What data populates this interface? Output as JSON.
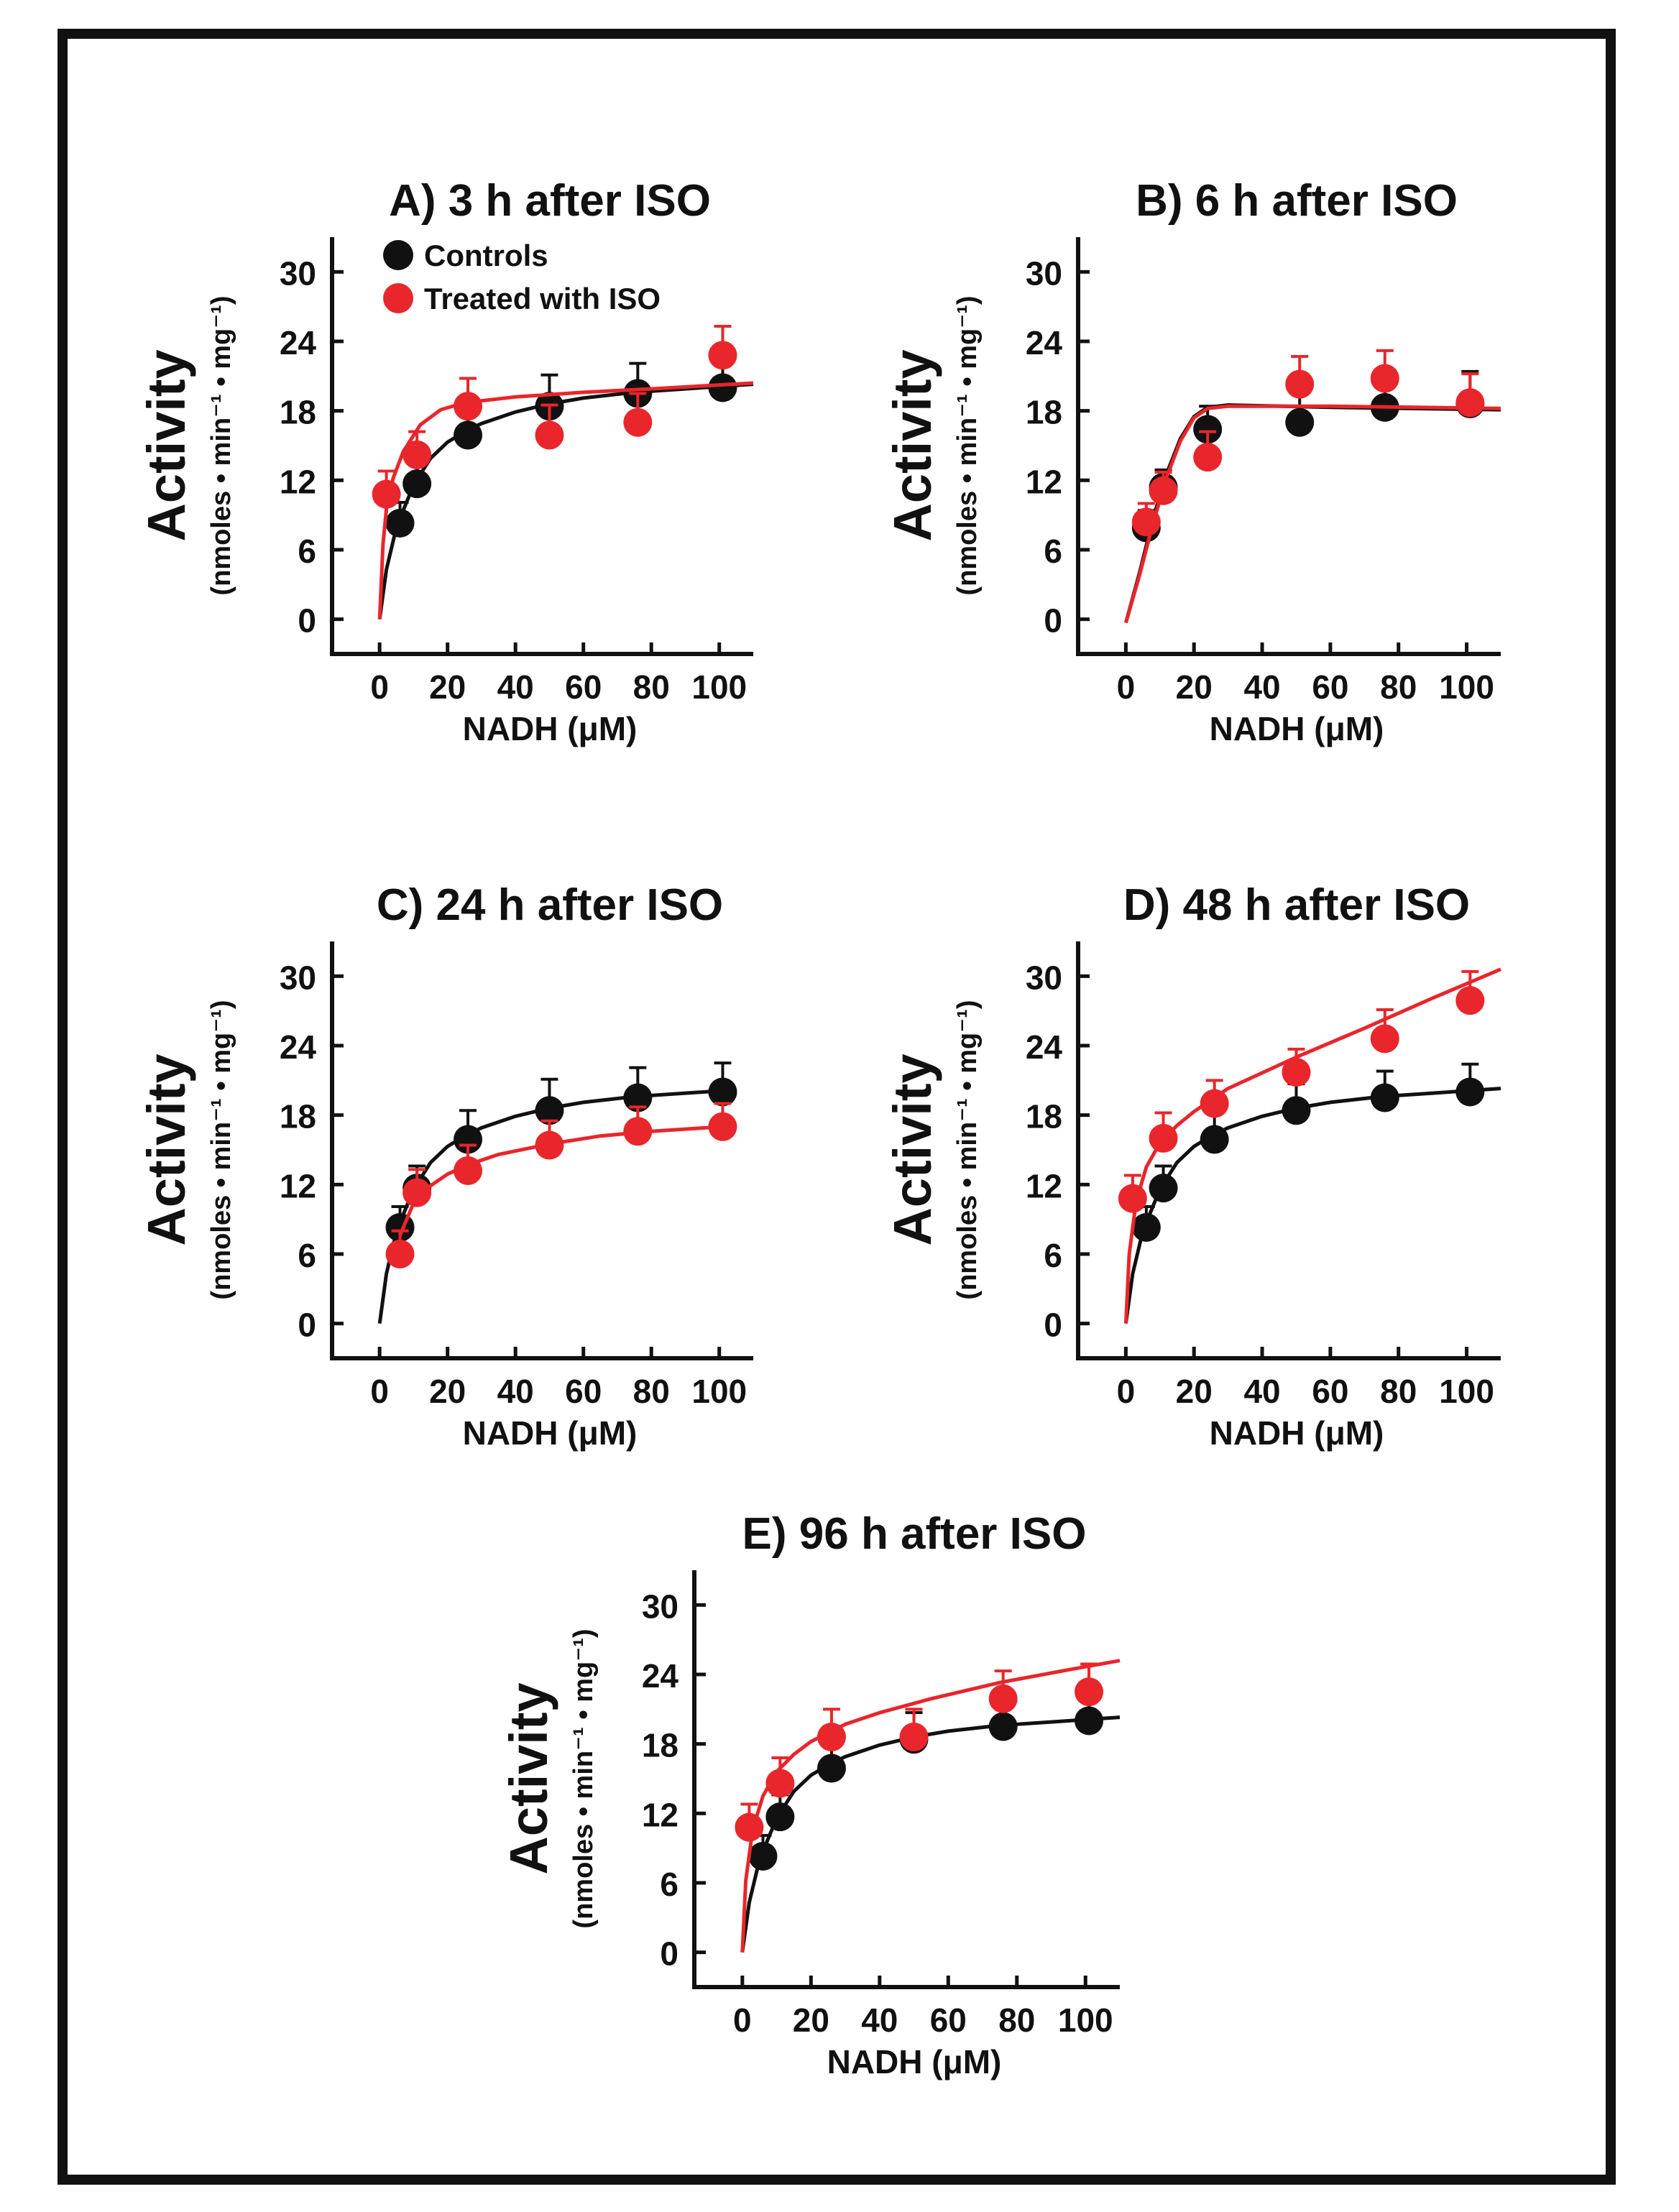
{
  "figure": {
    "legend": {
      "controls": "Controls",
      "treated": "Treated with ISO"
    }
  },
  "colors": {
    "controls": "#111111",
    "treated": "#e8262b",
    "frame": "#111111"
  },
  "chart_data": [
    {
      "id": "A",
      "type": "scatter",
      "title": "A) 3 h after ISO",
      "ylabel": "Activity",
      "ylabel_units": "(nmoles • min⁻¹ • mg⁻¹)",
      "xlabel": "NADH (μM)",
      "xlim": [
        -14,
        110
      ],
      "ylim": [
        -3,
        33
      ],
      "xticks": [
        0,
        20,
        40,
        60,
        80,
        100
      ],
      "yticks": [
        0,
        6,
        12,
        18,
        24,
        30
      ],
      "legend": "top-left",
      "series": [
        {
          "name": "Controls",
          "color": "#111111",
          "points": [
            {
              "x": 6,
              "y": 8.3,
              "err": 1.8
            },
            {
              "x": 11,
              "y": 11.7,
              "err": 1.9
            },
            {
              "x": 26,
              "y": 15.9,
              "err": 2.5
            },
            {
              "x": 50,
              "y": 18.4,
              "err": 2.7
            },
            {
              "x": 76,
              "y": 19.5,
              "err": 2.6
            },
            {
              "x": 101,
              "y": 20.0,
              "err": 2.5
            }
          ],
          "fit": [
            [
              0,
              0
            ],
            [
              2,
              4.3
            ],
            [
              5,
              8.0
            ],
            [
              10,
              11.6
            ],
            [
              15,
              13.9
            ],
            [
              20,
              15.3
            ],
            [
              25,
              16.2
            ],
            [
              30,
              16.9
            ],
            [
              40,
              17.9
            ],
            [
              50,
              18.6
            ],
            [
              60,
              19.1
            ],
            [
              75,
              19.6
            ],
            [
              90,
              19.9
            ],
            [
              110,
              20.3
            ]
          ]
        },
        {
          "name": "Treated with ISO",
          "color": "#e8262b",
          "points": [
            {
              "x": 2,
              "y": 10.8,
              "err": 2.0
            },
            {
              "x": 11,
              "y": 14.2,
              "err": 2.0
            },
            {
              "x": 26,
              "y": 18.4,
              "err": 2.4
            },
            {
              "x": 50,
              "y": 15.9,
              "err": 2.6
            },
            {
              "x": 76,
              "y": 17.0,
              "err": 2.5
            },
            {
              "x": 101,
              "y": 22.8,
              "err": 2.5
            }
          ],
          "fit": [
            [
              0,
              0
            ],
            [
              1,
              6.5
            ],
            [
              2,
              9.5
            ],
            [
              4,
              12.2
            ],
            [
              7,
              14.5
            ],
            [
              12,
              16.8
            ],
            [
              18,
              18.1
            ],
            [
              25,
              18.7
            ],
            [
              40,
              19.2
            ],
            [
              60,
              19.6
            ],
            [
              80,
              19.9
            ],
            [
              110,
              20.4
            ]
          ]
        }
      ]
    },
    {
      "id": "B",
      "type": "scatter",
      "title": "B) 6 h after ISO",
      "ylabel": "Activity",
      "ylabel_units": "(nmoles • min⁻¹ • mg⁻¹)",
      "xlabel": "NADH (μM)",
      "xlim": [
        -14,
        110
      ],
      "ylim": [
        -3,
        33
      ],
      "xticks": [
        0,
        20,
        40,
        60,
        80,
        100
      ],
      "yticks": [
        0,
        6,
        12,
        18,
        24,
        30
      ],
      "series": [
        {
          "name": "Controls",
          "color": "#111111",
          "points": [
            {
              "x": 6,
              "y": 7.9,
              "err": 1.5
            },
            {
              "x": 11,
              "y": 11.4,
              "err": 1.5
            },
            {
              "x": 24,
              "y": 16.4,
              "err": 2.0
            },
            {
              "x": 51,
              "y": 17.0,
              "err": 3.0
            },
            {
              "x": 76,
              "y": 18.3,
              "err": 3.0
            },
            {
              "x": 101,
              "y": 18.6,
              "err": 2.8
            }
          ],
          "fit": [
            [
              0,
              -0.3
            ],
            [
              4,
              4.0
            ],
            [
              8,
              8.7
            ],
            [
              12,
              12.6
            ],
            [
              16,
              15.6
            ],
            [
              20,
              17.5
            ],
            [
              24,
              18.3
            ],
            [
              30,
              18.5
            ],
            [
              60,
              18.3
            ],
            [
              110,
              18.1
            ]
          ]
        },
        {
          "name": "Treated with ISO",
          "color": "#e8262b",
          "points": [
            {
              "x": 6,
              "y": 8.4,
              "err": 1.6
            },
            {
              "x": 11,
              "y": 11.1,
              "err": 1.6
            },
            {
              "x": 24,
              "y": 14.0,
              "err": 2.2
            },
            {
              "x": 51,
              "y": 20.3,
              "err": 2.4
            },
            {
              "x": 76,
              "y": 20.8,
              "err": 2.4
            },
            {
              "x": 101,
              "y": 18.7,
              "err": 2.5
            }
          ],
          "fit": [
            [
              0,
              -0.3
            ],
            [
              4,
              3.8
            ],
            [
              8,
              8.3
            ],
            [
              12,
              12.3
            ],
            [
              16,
              15.4
            ],
            [
              20,
              17.4
            ],
            [
              24,
              18.2
            ],
            [
              30,
              18.4
            ],
            [
              60,
              18.4
            ],
            [
              110,
              18.2
            ]
          ]
        }
      ]
    },
    {
      "id": "C",
      "type": "scatter",
      "title": "C) 24 h after ISO",
      "ylabel": "Activity",
      "ylabel_units": "(nmoles • min⁻¹ • mg⁻¹)",
      "xlabel": "NADH (μM)",
      "xlim": [
        -14,
        110
      ],
      "ylim": [
        -3,
        33
      ],
      "xticks": [
        0,
        20,
        40,
        60,
        80,
        100
      ],
      "yticks": [
        0,
        6,
        12,
        18,
        24,
        30
      ],
      "series": [
        {
          "name": "Controls",
          "color": "#111111",
          "points": [
            {
              "x": 6,
              "y": 8.3,
              "err": 1.8
            },
            {
              "x": 11,
              "y": 11.7,
              "err": 1.9
            },
            {
              "x": 26,
              "y": 15.9,
              "err": 2.5
            },
            {
              "x": 50,
              "y": 18.4,
              "err": 2.7
            },
            {
              "x": 76,
              "y": 19.5,
              "err": 2.6
            },
            {
              "x": 101,
              "y": 20.0,
              "err": 2.5
            }
          ],
          "fit": [
            [
              0,
              0
            ],
            [
              2,
              4.3
            ],
            [
              5,
              8.0
            ],
            [
              10,
              11.6
            ],
            [
              15,
              13.9
            ],
            [
              20,
              15.3
            ],
            [
              25,
              16.2
            ],
            [
              30,
              16.9
            ],
            [
              40,
              17.9
            ],
            [
              50,
              18.6
            ],
            [
              60,
              19.1
            ],
            [
              75,
              19.6
            ],
            [
              90,
              19.9
            ],
            [
              101,
              20.1
            ]
          ]
        },
        {
          "name": "Treated with ISO",
          "color": "#e8262b",
          "points": [
            {
              "x": 6,
              "y": 6.0,
              "err": 2.0
            },
            {
              "x": 11,
              "y": 11.3,
              "err": 2.0
            },
            {
              "x": 26,
              "y": 13.2,
              "err": 2.2
            },
            {
              "x": 50,
              "y": 15.4,
              "err": 2.1
            },
            {
              "x": 76,
              "y": 16.6,
              "err": 2.1
            },
            {
              "x": 101,
              "y": 17.0,
              "err": 2.0
            }
          ],
          "fit": [
            [
              6,
              7.6
            ],
            [
              10,
              10.4
            ],
            [
              15,
              11.9
            ],
            [
              20,
              12.9
            ],
            [
              26,
              13.7
            ],
            [
              35,
              14.6
            ],
            [
              50,
              15.5
            ],
            [
              65,
              16.2
            ],
            [
              80,
              16.6
            ],
            [
              101,
              17.0
            ]
          ]
        }
      ]
    },
    {
      "id": "D",
      "type": "scatter",
      "title": "D) 48 h after ISO",
      "ylabel": "Activity",
      "ylabel_units": "(nmoles • min⁻¹ • mg⁻¹)",
      "xlabel": "NADH (μM)",
      "xlim": [
        -14,
        110
      ],
      "ylim": [
        -3,
        33
      ],
      "xticks": [
        0,
        20,
        40,
        60,
        80,
        100
      ],
      "yticks": [
        0,
        6,
        12,
        18,
        24,
        30
      ],
      "series": [
        {
          "name": "Controls",
          "color": "#111111",
          "points": [
            {
              "x": 6,
              "y": 8.3,
              "err": 1.8
            },
            {
              "x": 11,
              "y": 11.7,
              "err": 1.9
            },
            {
              "x": 26,
              "y": 15.9,
              "err": 2.5
            },
            {
              "x": 50,
              "y": 18.4,
              "err": 2.3
            },
            {
              "x": 76,
              "y": 19.5,
              "err": 2.3
            },
            {
              "x": 101,
              "y": 20.0,
              "err": 2.4
            }
          ],
          "fit": [
            [
              0,
              0
            ],
            [
              2,
              4.3
            ],
            [
              5,
              8.0
            ],
            [
              10,
              11.6
            ],
            [
              15,
              13.9
            ],
            [
              20,
              15.3
            ],
            [
              25,
              16.2
            ],
            [
              30,
              16.9
            ],
            [
              40,
              17.9
            ],
            [
              50,
              18.6
            ],
            [
              60,
              19.1
            ],
            [
              75,
              19.6
            ],
            [
              90,
              19.9
            ],
            [
              110,
              20.3
            ]
          ]
        },
        {
          "name": "Treated with ISO",
          "color": "#e8262b",
          "points": [
            {
              "x": 2,
              "y": 10.8,
              "err": 2.0
            },
            {
              "x": 11,
              "y": 16.0,
              "err": 2.2
            },
            {
              "x": 26,
              "y": 19.0,
              "err": 2.0
            },
            {
              "x": 50,
              "y": 21.7,
              "err": 2.0
            },
            {
              "x": 76,
              "y": 24.6,
              "err": 2.5
            },
            {
              "x": 101,
              "y": 27.9,
              "err": 2.5
            }
          ],
          "fit": [
            [
              0,
              0
            ],
            [
              1,
              6.0
            ],
            [
              3,
              10.5
            ],
            [
              6,
              13.5
            ],
            [
              10,
              15.6
            ],
            [
              15,
              17.1
            ],
            [
              20,
              18.3
            ],
            [
              30,
              20.3
            ],
            [
              50,
              23.0
            ],
            [
              70,
              25.5
            ],
            [
              90,
              28.1
            ],
            [
              110,
              30.6
            ]
          ]
        }
      ]
    },
    {
      "id": "E",
      "type": "scatter",
      "title": "E) 96 h after ISO",
      "ylabel": "Activity",
      "ylabel_units": "(nmoles • min⁻¹ • mg⁻¹)",
      "xlabel": "NADH (μM)",
      "xlim": [
        -14,
        110
      ],
      "ylim": [
        -3,
        33
      ],
      "xticks": [
        0,
        20,
        40,
        60,
        80,
        100
      ],
      "yticks": [
        0,
        6,
        12,
        18,
        24,
        30
      ],
      "series": [
        {
          "name": "Controls",
          "color": "#111111",
          "points": [
            {
              "x": 6,
              "y": 8.3,
              "err": 1.8
            },
            {
              "x": 11,
              "y": 11.7,
              "err": 1.9
            },
            {
              "x": 26,
              "y": 15.9,
              "err": 2.5
            },
            {
              "x": 50,
              "y": 18.4,
              "err": 2.3
            },
            {
              "x": 76,
              "y": 19.5,
              "err": 2.3
            },
            {
              "x": 101,
              "y": 20.0,
              "err": 2.4
            }
          ],
          "fit": [
            [
              0,
              0
            ],
            [
              2,
              4.3
            ],
            [
              5,
              8.0
            ],
            [
              10,
              11.6
            ],
            [
              15,
              13.9
            ],
            [
              20,
              15.3
            ],
            [
              25,
              16.2
            ],
            [
              30,
              16.9
            ],
            [
              40,
              17.9
            ],
            [
              50,
              18.6
            ],
            [
              60,
              19.1
            ],
            [
              75,
              19.6
            ],
            [
              90,
              19.9
            ],
            [
              110,
              20.3
            ]
          ]
        },
        {
          "name": "Treated with ISO",
          "color": "#e8262b",
          "points": [
            {
              "x": 2,
              "y": 10.8,
              "err": 2.0
            },
            {
              "x": 11,
              "y": 14.6,
              "err": 2.2
            },
            {
              "x": 26,
              "y": 18.6,
              "err": 2.4
            },
            {
              "x": 50,
              "y": 18.6,
              "err": 2.4
            },
            {
              "x": 76,
              "y": 21.9,
              "err": 2.4
            },
            {
              "x": 101,
              "y": 22.5,
              "err": 2.4
            }
          ],
          "fit": [
            [
              0,
              0
            ],
            [
              1,
              6.2
            ],
            [
              3,
              10.6
            ],
            [
              6,
              13.5
            ],
            [
              10,
              15.6
            ],
            [
              15,
              17.1
            ],
            [
              20,
              18.2
            ],
            [
              30,
              19.7
            ],
            [
              40,
              20.7
            ],
            [
              55,
              21.9
            ],
            [
              75,
              23.3
            ],
            [
              95,
              24.4
            ],
            [
              110,
              25.2
            ]
          ]
        }
      ]
    }
  ]
}
